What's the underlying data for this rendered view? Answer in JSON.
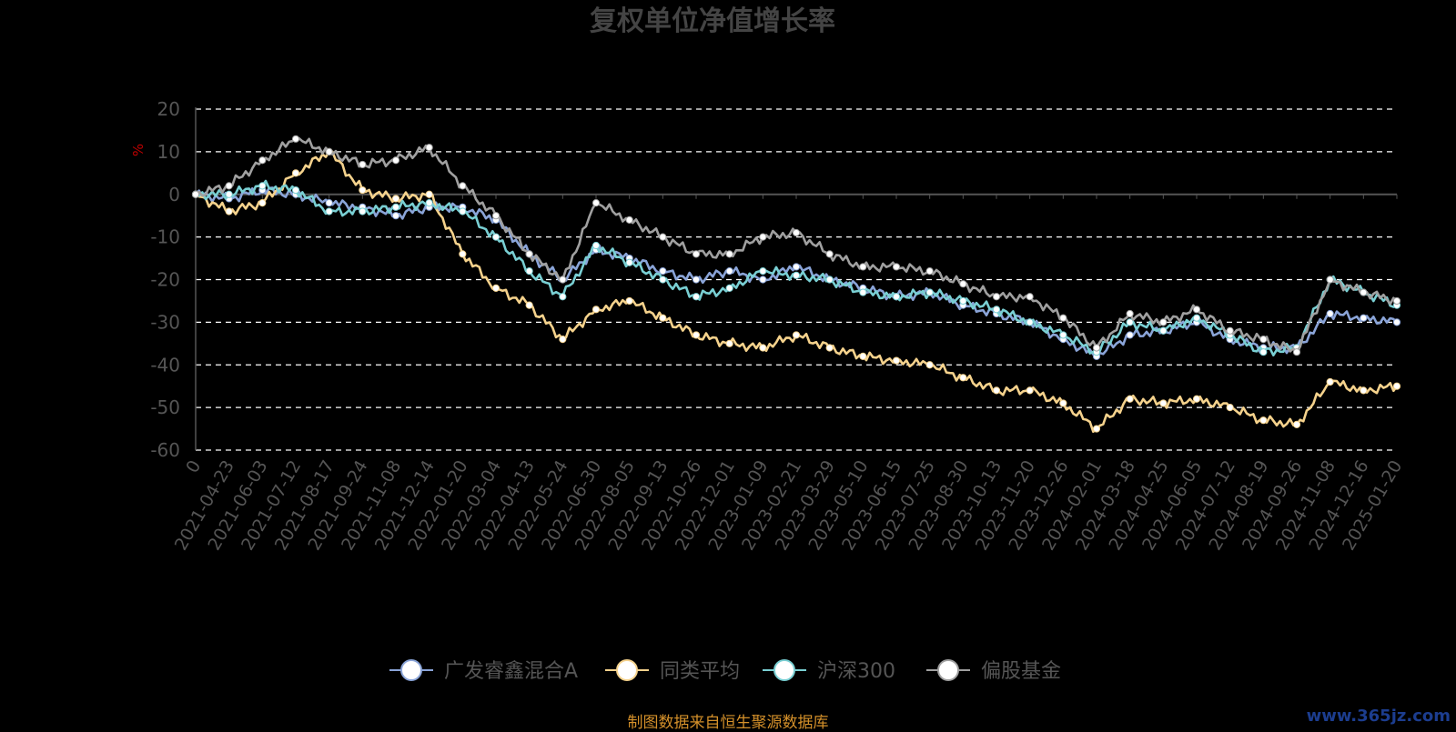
{
  "chart_data": {
    "type": "line",
    "title": "复权单位净值增长率",
    "ylabel": "%",
    "ylim": [
      -60,
      20
    ],
    "yticks": [
      20,
      10,
      0,
      -10,
      -20,
      -30,
      -40,
      -50,
      -60
    ],
    "grid": true,
    "legend_position": "bottom",
    "x": [
      "0",
      "2021-04-23",
      "2021-06-03",
      "2021-07-12",
      "2021-08-17",
      "2021-09-24",
      "2021-11-08",
      "2021-12-14",
      "2022-01-20",
      "2022-03-04",
      "2022-04-13",
      "2022-05-24",
      "2022-06-30",
      "2022-08-05",
      "2022-09-13",
      "2022-10-26",
      "2022-12-01",
      "2023-01-09",
      "2023-02-21",
      "2023-03-29",
      "2023-05-10",
      "2023-06-15",
      "2023-07-25",
      "2023-08-30",
      "2023-10-13",
      "2023-11-20",
      "2023-12-26",
      "2024-02-01",
      "2024-03-18",
      "2024-04-25",
      "2024-06-05",
      "2024-07-12",
      "2024-08-19",
      "2024-09-26",
      "2024-11-08",
      "2024-12-16",
      "2025-01-20"
    ],
    "series": [
      {
        "name": "广发睿鑫混合A",
        "color": "#8aa4d8",
        "values": [
          0,
          -1,
          1,
          0,
          -2,
          -3,
          -5,
          -3,
          -3,
          -6,
          -14,
          -20,
          -13,
          -15,
          -18,
          -20,
          -18,
          -20,
          -17,
          -20,
          -22,
          -24,
          -23,
          -26,
          -28,
          -30,
          -34,
          -38,
          -33,
          -32,
          -30,
          -34,
          -36,
          -36,
          -28,
          -29,
          -30
        ]
      },
      {
        "name": "同类平均",
        "color": "#f5d28c",
        "values": [
          0,
          -4,
          -2,
          5,
          10,
          1,
          -1,
          0,
          -14,
          -22,
          -26,
          -34,
          -27,
          -25,
          -29,
          -33,
          -35,
          -36,
          -33,
          -36,
          -38,
          -39,
          -40,
          -43,
          -46,
          -46,
          -49,
          -55,
          -48,
          -49,
          -48,
          -50,
          -53,
          -54,
          -44,
          -46,
          -45
        ]
      },
      {
        "name": "沪深300",
        "color": "#79cfd3",
        "values": [
          0,
          0,
          2,
          1,
          -4,
          -4,
          -3,
          -2,
          -4,
          -10,
          -18,
          -24,
          -12,
          -16,
          -20,
          -24,
          -22,
          -18,
          -19,
          -20,
          -23,
          -24,
          -23,
          -25,
          -27,
          -30,
          -33,
          -37,
          -30,
          -32,
          -29,
          -33,
          -37,
          -36,
          -20,
          -23,
          -26
        ]
      },
      {
        "name": "偏股基金",
        "color": "#a0a0a0",
        "values": [
          0,
          2,
          8,
          13,
          10,
          7,
          8,
          11,
          2,
          -5,
          -14,
          -20,
          -2,
          -6,
          -10,
          -14,
          -14,
          -10,
          -9,
          -14,
          -17,
          -17,
          -18,
          -21,
          -24,
          -24,
          -29,
          -36,
          -28,
          -30,
          -27,
          -32,
          -34,
          -37,
          -20,
          -23,
          -25
        ]
      }
    ]
  },
  "source_text": "制图数据来自恒生聚源数据库",
  "watermark": "www.365jz.com",
  "colors": {
    "background": "#000000",
    "grid": "#ffffff",
    "axis": "#555555",
    "unit": "#c00000",
    "source": "#d4902a"
  }
}
